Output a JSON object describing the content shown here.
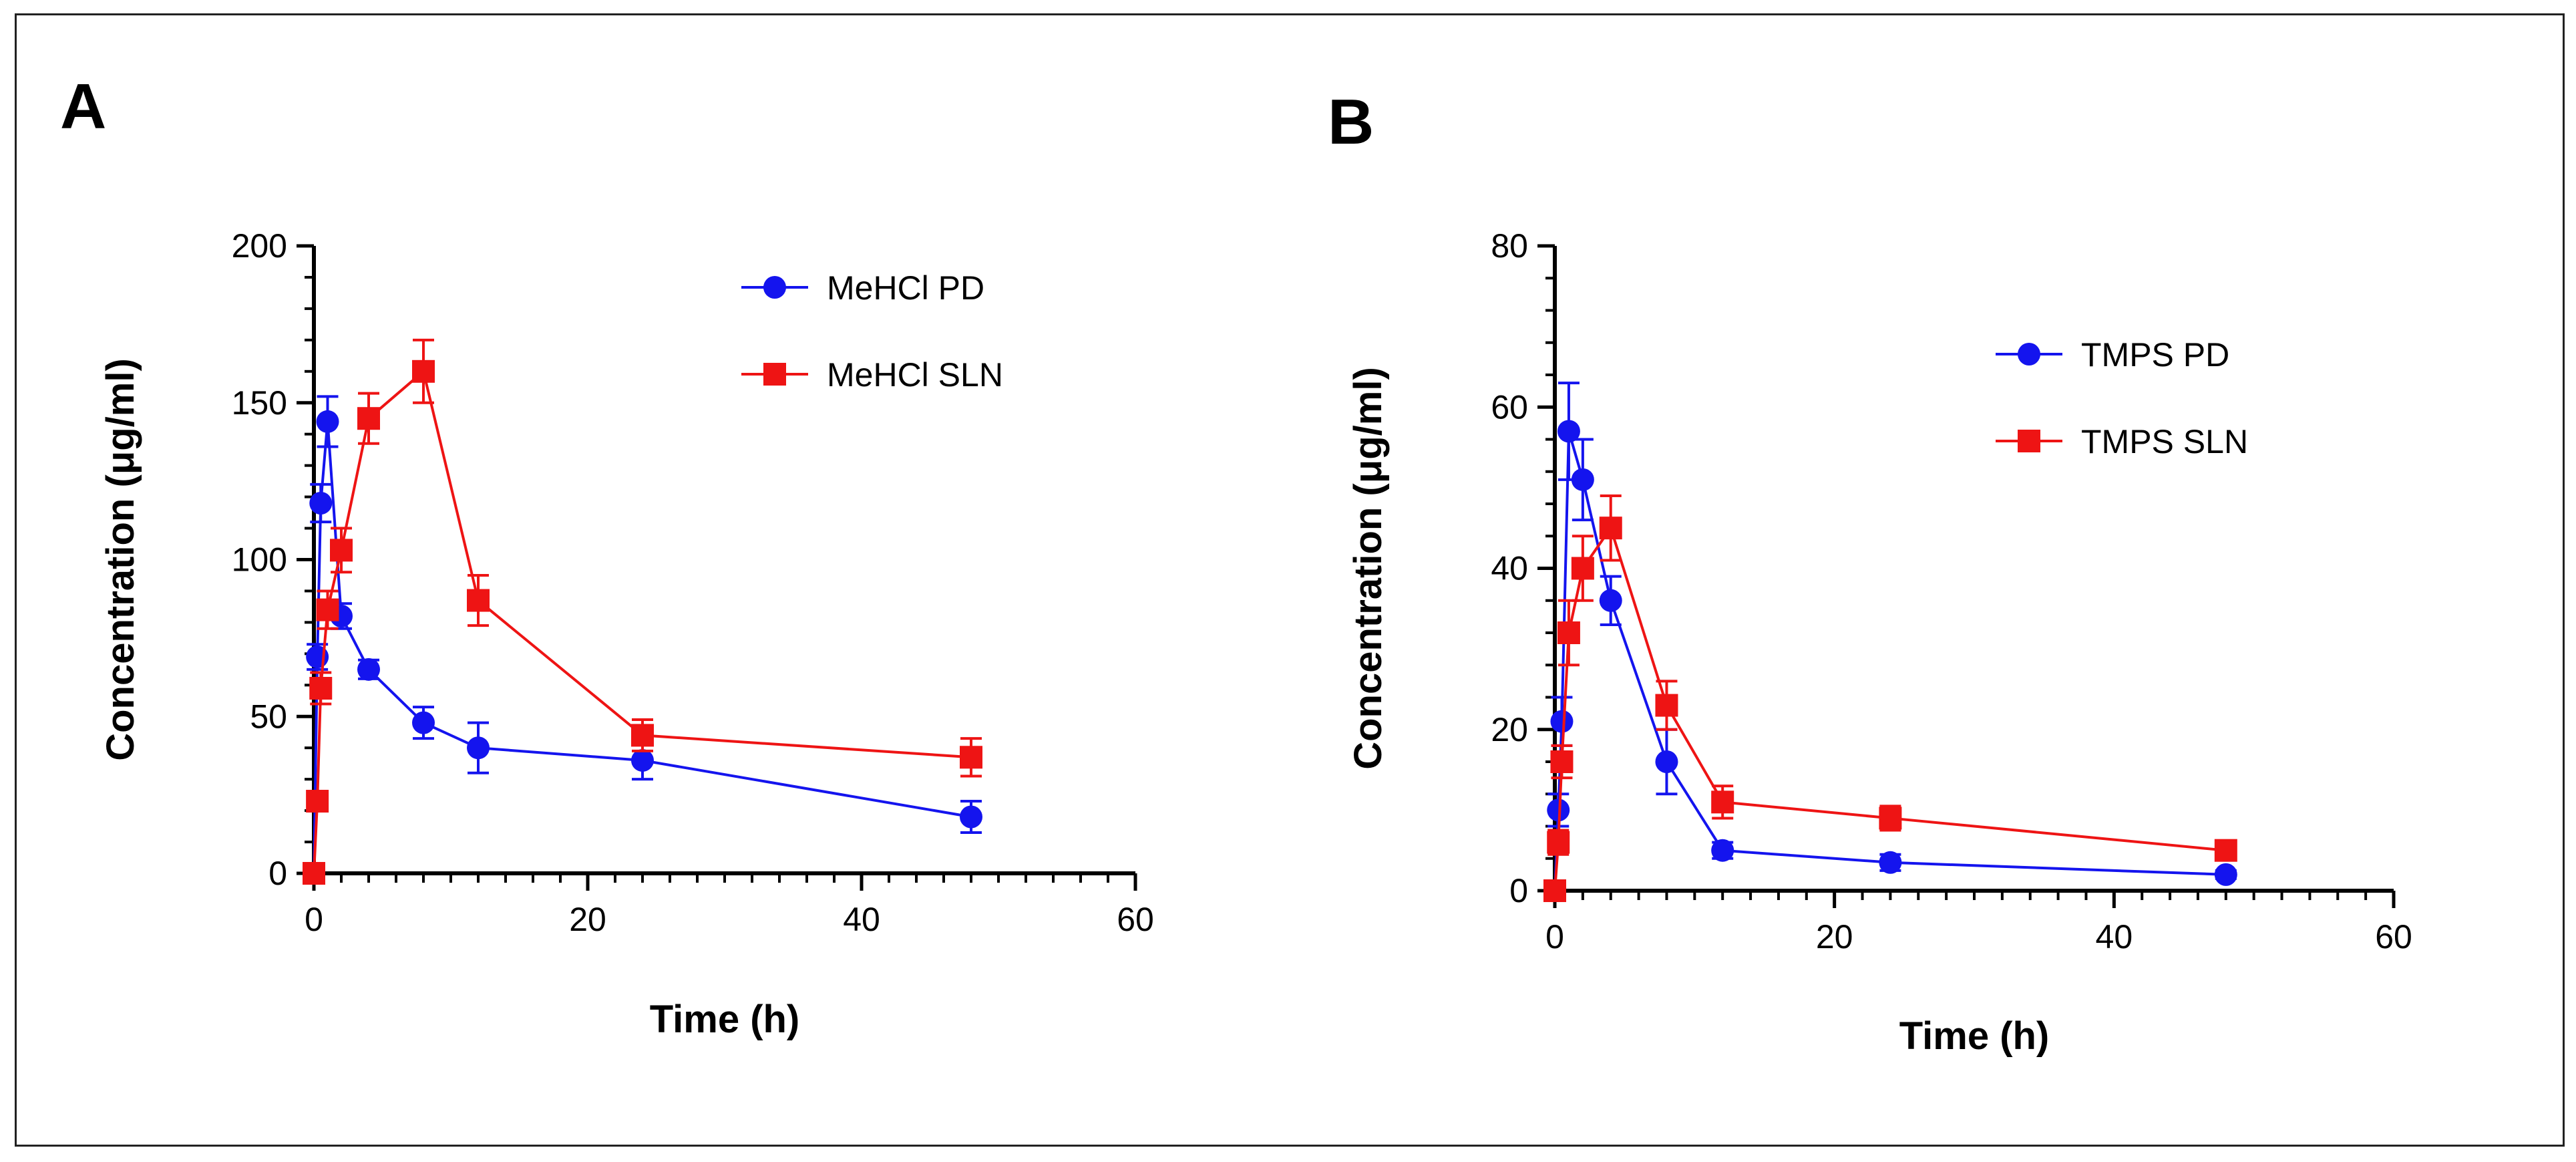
{
  "chart_data": [
    {
      "type": "line",
      "panel_label": "A",
      "xlabel": "Time (h)",
      "ylabel": "Concentration (μg/ml)",
      "xlim": [
        0,
        60
      ],
      "ylim": [
        0,
        200
      ],
      "x_ticks": [
        0,
        20,
        40,
        60
      ],
      "y_ticks": [
        0,
        50,
        100,
        150,
        200
      ],
      "legend_position": "top-right",
      "series": [
        {
          "name": "MeHCl PD",
          "color": "#1414ee",
          "marker": "circle",
          "x": [
            0,
            0.25,
            0.5,
            1,
            2,
            4,
            8,
            12,
            24,
            48
          ],
          "y": [
            0,
            69,
            118,
            144,
            82,
            65,
            48,
            40,
            36,
            18
          ],
          "err": [
            0,
            4,
            6,
            8,
            4,
            3,
            5,
            8,
            6,
            5
          ]
        },
        {
          "name": "MeHCl SLN",
          "color": "#ee1414",
          "marker": "square",
          "x": [
            0,
            0.25,
            0.5,
            1,
            2,
            4,
            8,
            12,
            24,
            48
          ],
          "y": [
            0,
            23,
            59,
            84,
            103,
            145,
            160,
            87,
            44,
            37
          ],
          "err": [
            0,
            3,
            5,
            6,
            7,
            8,
            10,
            8,
            5,
            6
          ]
        }
      ]
    },
    {
      "type": "line",
      "panel_label": "B",
      "xlabel": "Time (h)",
      "ylabel": "Concentration (μg/ml)",
      "xlim": [
        0,
        60
      ],
      "ylim": [
        0,
        80
      ],
      "x_ticks": [
        0,
        20,
        40,
        60
      ],
      "y_ticks": [
        0,
        20,
        40,
        60,
        80
      ],
      "legend_position": "top-right",
      "series": [
        {
          "name": "TMPS PD",
          "color": "#1414ee",
          "marker": "circle",
          "x": [
            0,
            0.25,
            0.5,
            1,
            2,
            4,
            8,
            12,
            24,
            48
          ],
          "y": [
            0,
            10,
            21,
            57,
            51,
            36,
            16,
            5,
            3.5,
            2
          ],
          "err": [
            0,
            2,
            3,
            6,
            5,
            3,
            4,
            1,
            1,
            0.5
          ]
        },
        {
          "name": "TMPS SLN",
          "color": "#ee1414",
          "marker": "square",
          "x": [
            0,
            0.25,
            0.5,
            1,
            2,
            4,
            8,
            12,
            24,
            48
          ],
          "y": [
            0,
            6,
            16,
            32,
            40,
            45,
            23,
            11,
            9,
            5
          ],
          "err": [
            0,
            1.5,
            2,
            4,
            4,
            4,
            3,
            2,
            1.5,
            1
          ]
        }
      ]
    }
  ]
}
